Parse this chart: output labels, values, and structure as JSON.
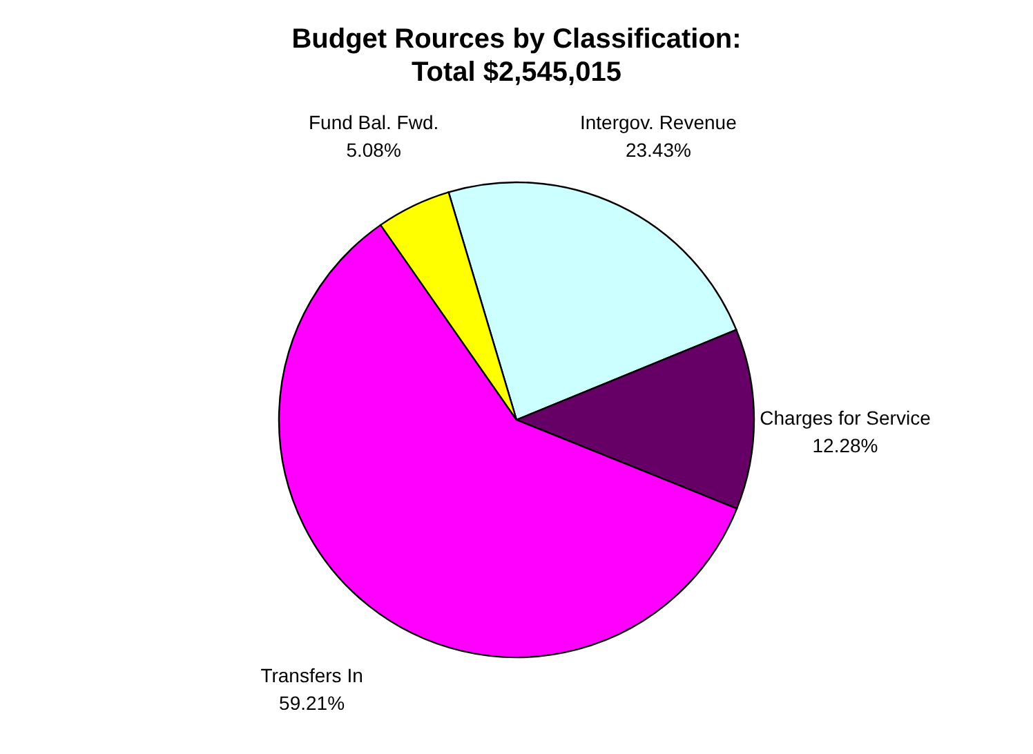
{
  "chart_data": {
    "type": "pie",
    "title": "Budget Rources by Classification:",
    "subtitle": "Total  $2,545,015",
    "categories": [
      "Intergov. Revenue",
      "Charges for Service",
      "Transfers In",
      "Fund Bal. Fwd."
    ],
    "values": [
      23.43,
      12.28,
      59.21,
      5.08
    ],
    "colors": [
      "#ccffff",
      "#660066",
      "#ff00ff",
      "#ffff00"
    ],
    "value_labels": [
      "23.43%",
      "12.28%",
      "59.21%",
      "5.08%"
    ],
    "legend": false
  }
}
